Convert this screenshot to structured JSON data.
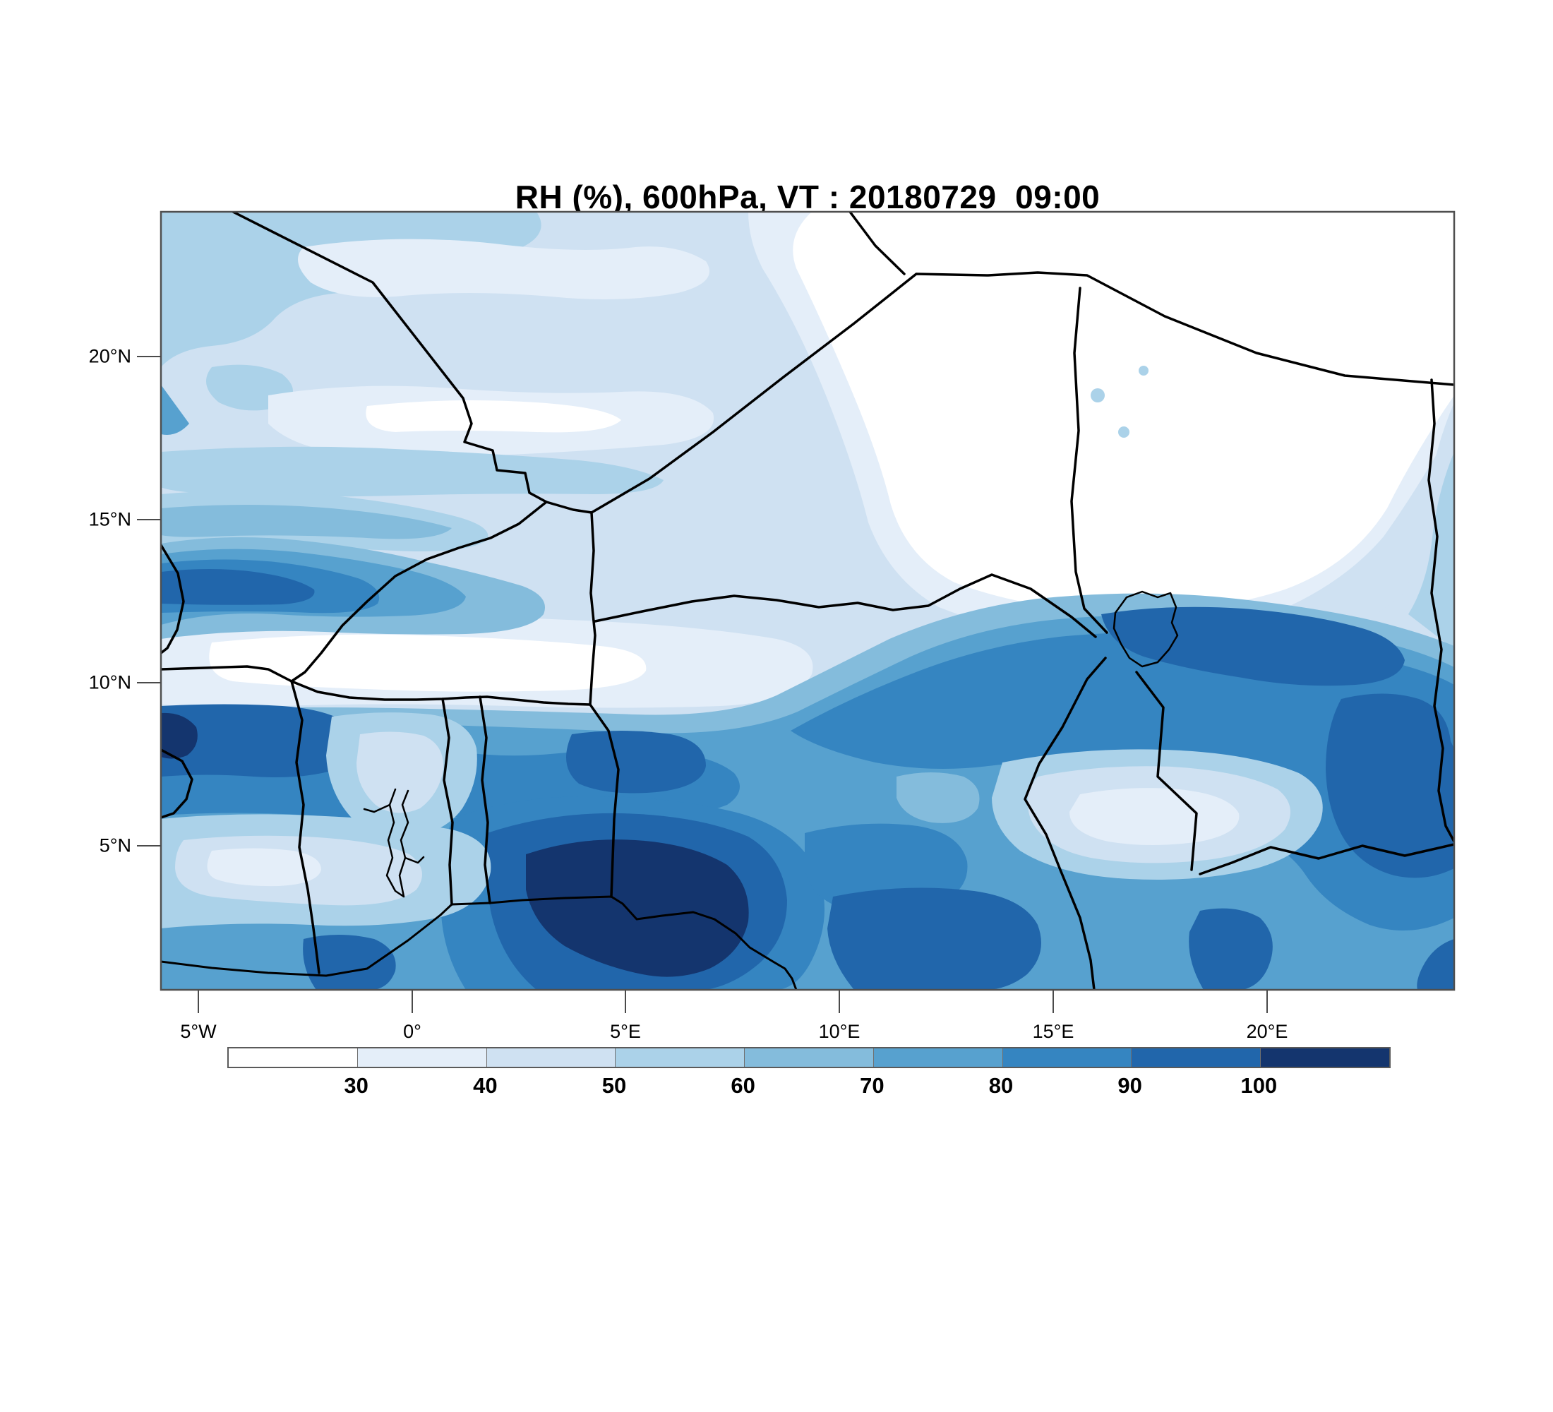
{
  "title": "RH (%), 600hPa, VT : 20180729  09:00",
  "axes": {
    "y_ticks": [
      "20°N",
      "15°N",
      "10°N",
      "5°N"
    ],
    "x_ticks": [
      "5°W",
      "0°",
      "5°E",
      "10°E",
      "15°E",
      "20°E"
    ]
  },
  "colorbar": {
    "tick_labels": [
      "30",
      "40",
      "50",
      "60",
      "70",
      "80",
      "90",
      "100"
    ],
    "colors": [
      "#ffffff",
      "#e4eef9",
      "#cfe1f2",
      "#abd2e9",
      "#84bcdc",
      "#57a1cf",
      "#3585c1",
      "#2166ab",
      "#14356e"
    ]
  },
  "chart_data": {
    "type": "heatmap",
    "subtype": "filled-contour-weather-map",
    "title": "RH (%), 600hPa, VT : 20180729  09:00",
    "variable": "RH",
    "units": "%",
    "pressure_level": "600hPa",
    "valid_time": "20180729 09:00",
    "x_tick_labels": [
      "5°W",
      "0°",
      "5°E",
      "10°E",
      "15°E",
      "20°E"
    ],
    "y_tick_labels": [
      "20°N",
      "15°N",
      "10°N",
      "5°N"
    ],
    "contour_levels": [
      30,
      40,
      50,
      60,
      70,
      80,
      90,
      100
    ],
    "legend_position": "bottom",
    "grid": false,
    "regions_summary": [
      {
        "area": "northeast Sahara (right-top)",
        "value_range": "< 30"
      },
      {
        "area": "Sahel strip ~12°N west and ~15-18°N center",
        "value_range": "30-50"
      },
      {
        "area": "west band ~13.5-15°N near left edge",
        "value_range": "80-100"
      },
      {
        "area": "belt 5-11.5°N across full width",
        "value_range": "70-90"
      },
      {
        "area": "Gulf of Guinea coast blob ~4-6°N, 0-8°E",
        "value_range": "> 100"
      },
      {
        "area": "northeast rising band 20-24°E",
        "value_range": "80-100"
      }
    ]
  }
}
